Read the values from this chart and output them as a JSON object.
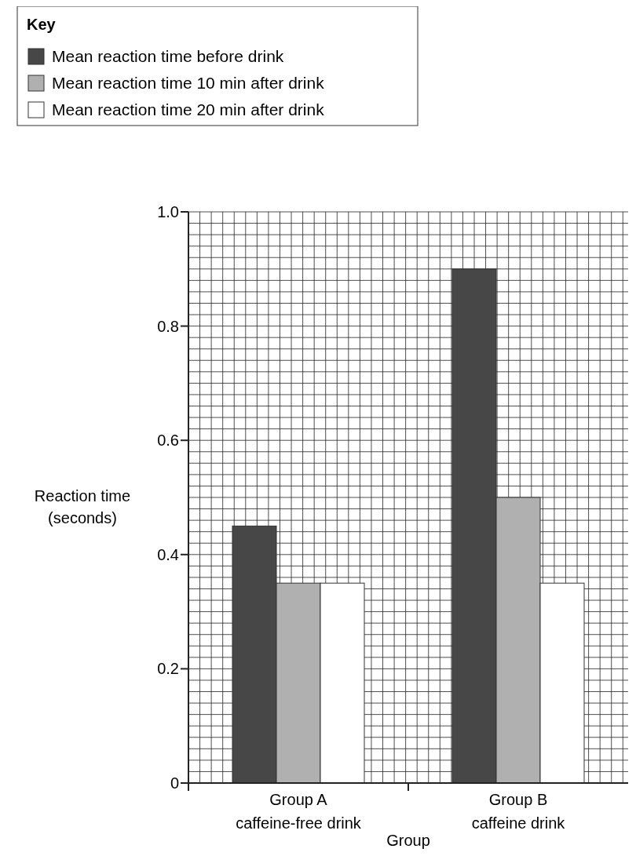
{
  "chart_data": {
    "type": "bar",
    "legend_title": "Key",
    "xlabel": "Group",
    "ylabel": "Reaction time\n(seconds)",
    "categories": [
      "Group A\ncaffeine-free drink",
      "Group B\ncaffeine drink"
    ],
    "series": [
      {
        "name": "Mean reaction time before drink",
        "color": "#474747",
        "values": [
          0.45,
          0.9
        ]
      },
      {
        "name": "Mean reaction time 10 min after drink",
        "color": "#b0b0b0",
        "values": [
          0.35,
          0.5
        ]
      },
      {
        "name": "Mean reaction time 20 min after drink",
        "color": "#ffffff",
        "values": [
          0.35,
          0.35
        ]
      }
    ],
    "ylim": [
      0,
      1
    ],
    "yticks": [
      0,
      0.2,
      0.4,
      0.6,
      0.8,
      {
        "value": 1,
        "label": "1.0"
      }
    ],
    "grid": true,
    "legend": "top left"
  }
}
